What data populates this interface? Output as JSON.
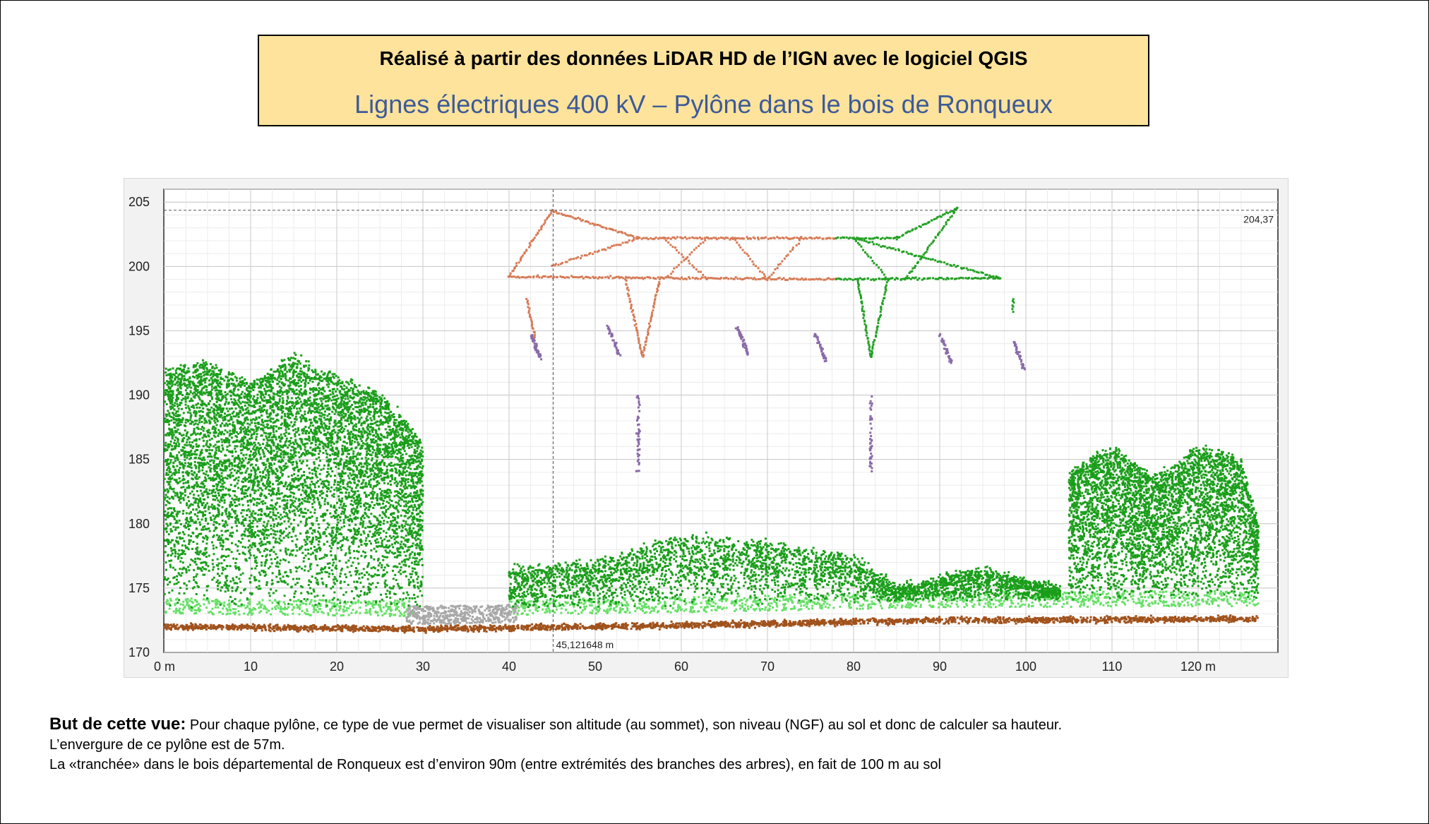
{
  "header": {
    "line1": "Réalisé à partir des données LiDAR HD de l’IGN avec le logiciel QGIS",
    "line2": "Lignes électriques 400 kV – Pylône dans le bois de Ronqueux"
  },
  "chart_data": {
    "type": "scatter",
    "title": "",
    "xlabel": "",
    "ylabel": "",
    "x_unit_suffix": " m",
    "xlim": [
      0,
      129
    ],
    "ylim": [
      170,
      206
    ],
    "x_ticks": [
      0,
      10,
      20,
      30,
      40,
      50,
      60,
      70,
      80,
      90,
      100,
      110,
      120
    ],
    "x_tick_labels": [
      "0 m",
      "10",
      "20",
      "30",
      "40",
      "50",
      "60",
      "70",
      "80",
      "90",
      "100",
      "110",
      "120 m"
    ],
    "y_ticks": [
      170,
      175,
      180,
      185,
      190,
      195,
      200,
      205
    ],
    "y_tick_labels": [
      "170",
      "175",
      "180",
      "185",
      "190",
      "195",
      "200",
      "205"
    ],
    "grid": true,
    "crosshair": {
      "x": 45.121648,
      "x_label": "45,121648 m",
      "y": 204.37,
      "y_label": "204,37"
    },
    "colors": {
      "ground": "#a0521c",
      "low_vegetation": "#66e066",
      "vegetation": "#1a9e1a",
      "unclassified": "#a8a8a8",
      "pylon_left": "#d67a55",
      "pylon_right": "#22a022",
      "insulators": "#8a6aa8"
    },
    "series": [
      {
        "class": "ground",
        "points": [
          [
            0,
            172.0
          ],
          [
            30,
            171.8
          ],
          [
            60,
            172.1
          ],
          [
            90,
            172.5
          ],
          [
            127,
            172.6
          ]
        ]
      },
      {
        "class": "vegetation_left_wood",
        "x_range": [
          0,
          30
        ],
        "top": [
          [
            0,
            192.0
          ],
          [
            5,
            192.5
          ],
          [
            10,
            191.0
          ],
          [
            15,
            193.0
          ],
          [
            20,
            191.5
          ],
          [
            25,
            190.0
          ],
          [
            28,
            188.0
          ],
          [
            30,
            186.0
          ]
        ]
      },
      {
        "class": "vegetation_clearing",
        "x_range": [
          40,
          104
        ],
        "top": [
          [
            40,
            176.5
          ],
          [
            50,
            177.0
          ],
          [
            60,
            179.0
          ],
          [
            70,
            178.5
          ],
          [
            80,
            177.5
          ],
          [
            85,
            175.0
          ],
          [
            95,
            176.5
          ],
          [
            104,
            175.0
          ]
        ]
      },
      {
        "class": "vegetation_right_wood",
        "x_range": [
          105,
          127
        ],
        "top": [
          [
            105,
            184.0
          ],
          [
            110,
            186.0
          ],
          [
            115,
            183.5
          ],
          [
            120,
            186.0
          ],
          [
            125,
            185.0
          ],
          [
            127,
            180.0
          ]
        ]
      },
      {
        "class": "pylon",
        "span": [
          40,
          97
        ],
        "crossarm_height": 199.0,
        "upper_chord": 202.0,
        "top": 204.37
      },
      {
        "class": "insulators",
        "points": [
          [
            42.5,
            194.0
          ],
          [
            51.5,
            194.5
          ],
          [
            66.5,
            194.5
          ],
          [
            75.5,
            194.0
          ],
          [
            90.0,
            194.0
          ],
          [
            98.5,
            193.5
          ]
        ]
      },
      {
        "class": "conductors",
        "points": [
          [
            55.0,
            188.0
          ],
          [
            82.0,
            188.0
          ]
        ]
      }
    ]
  },
  "caption": {
    "lead": "But de cette vue:",
    "line1": " Pour chaque pylône, ce type de vue permet de visualiser son altitude (au sommet), son niveau (NGF) au sol et donc de calculer sa hauteur.",
    "line2": "L’envergure de ce pylône est de 57m.",
    "line3": "La «tranchée» dans le bois départemental de Ronqueux  est d’environ 90m (entre extrémités des branches des arbres), en fait de 100 m au sol"
  }
}
